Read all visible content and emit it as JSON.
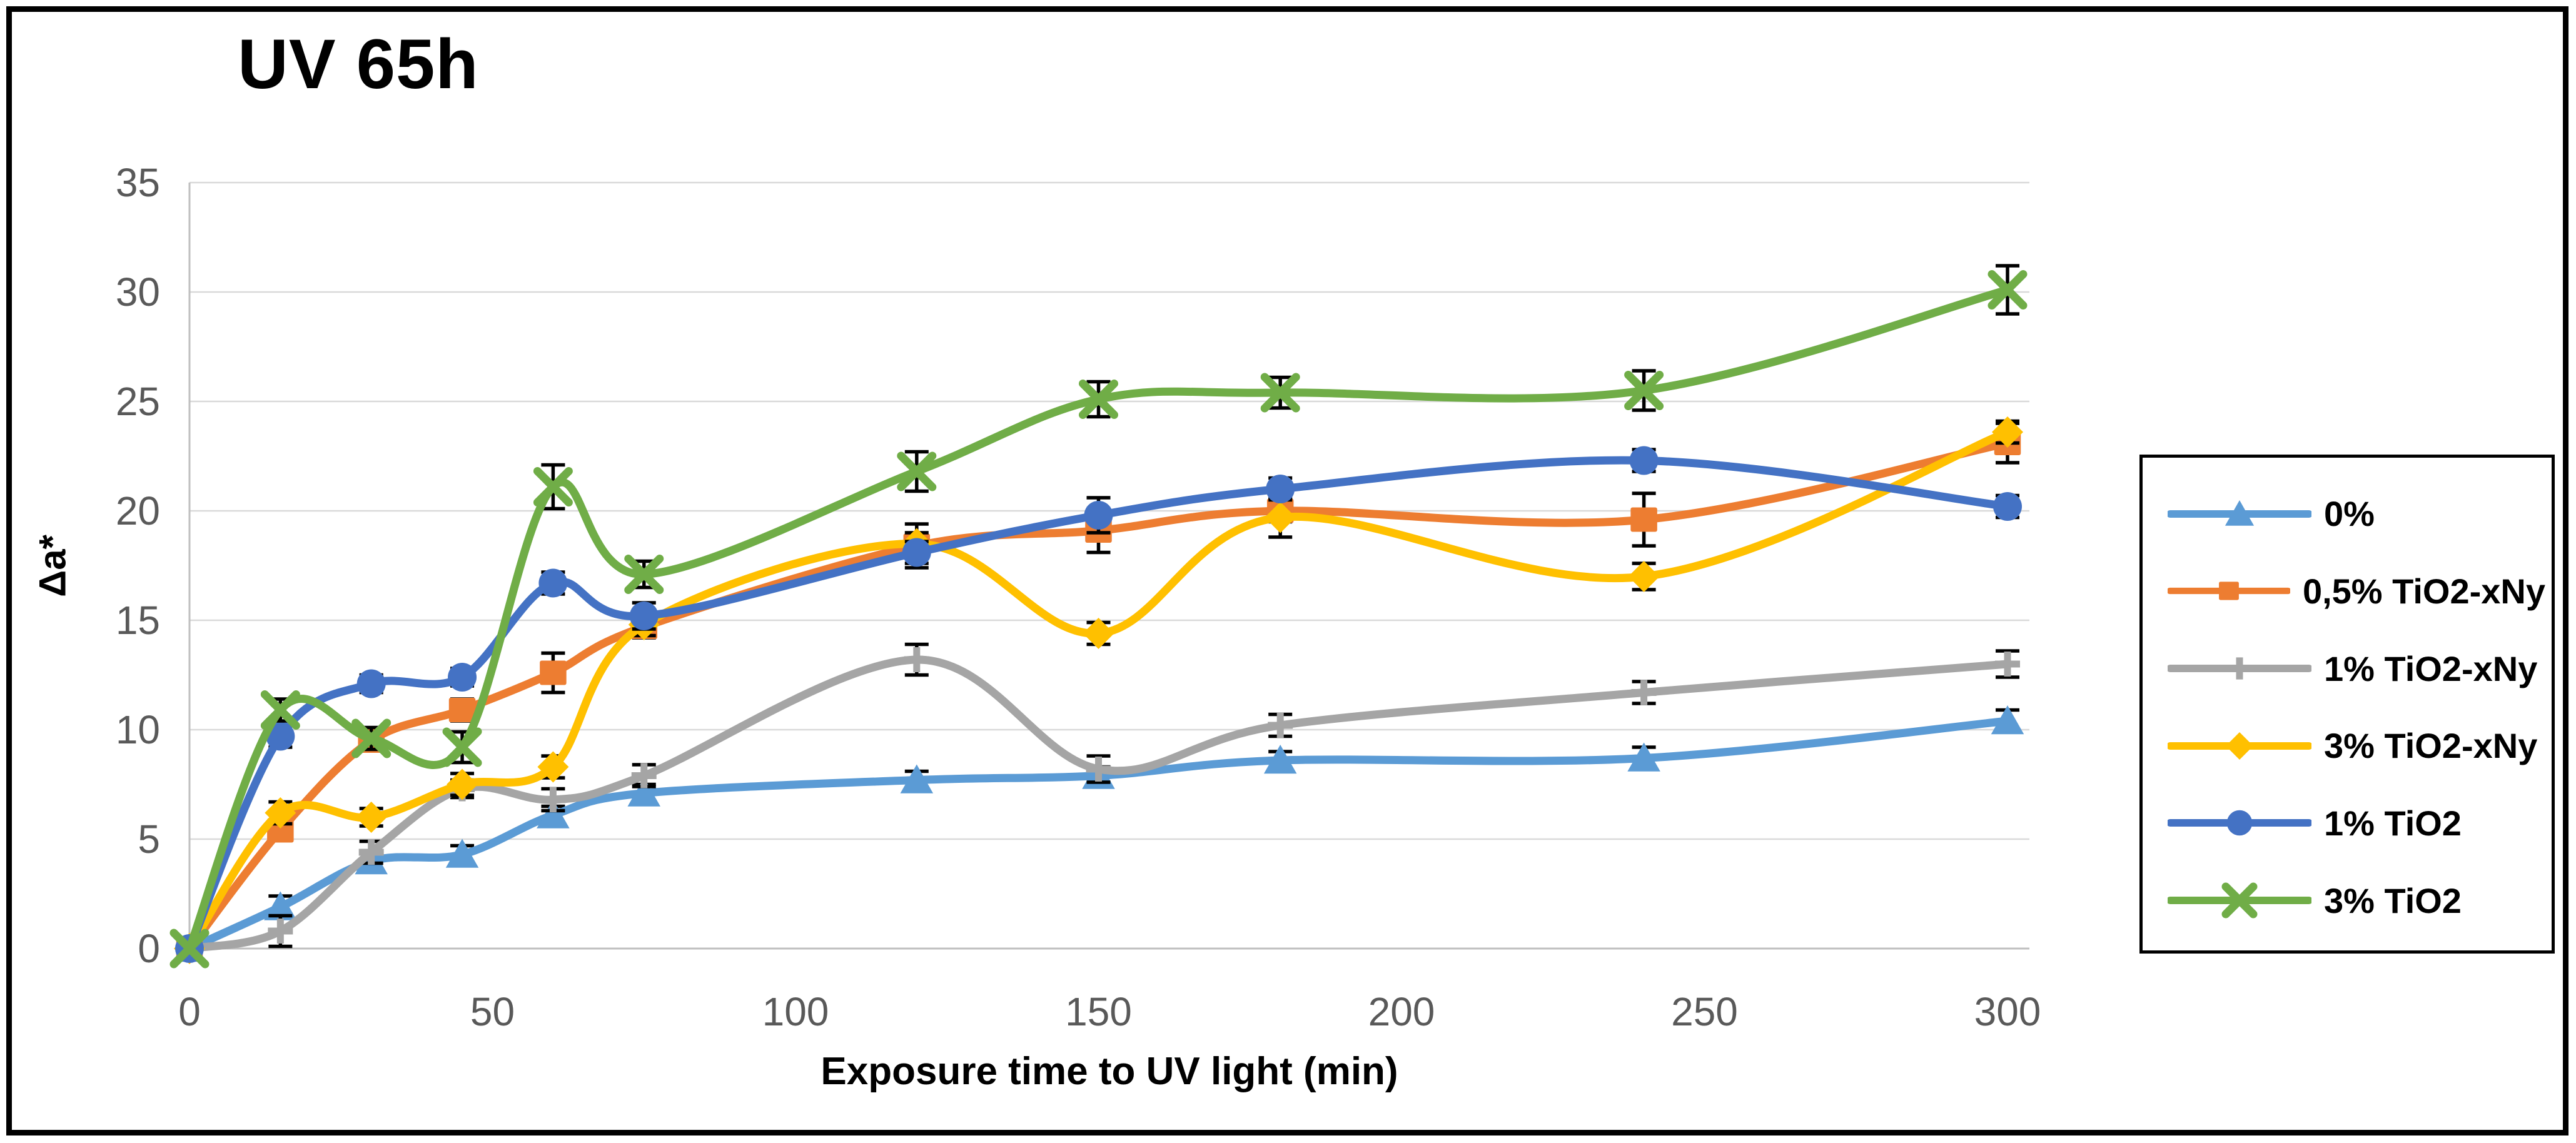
{
  "figure": {
    "title": "UV 65h",
    "border_color": "#000000",
    "background": "#FFFFFF"
  },
  "chart_data": {
    "type": "line",
    "title": "UV 65h",
    "xlabel": "Exposure time to UV light (min)",
    "ylabel": "Δa*",
    "xlim": [
      0,
      304
    ],
    "ylim": [
      0,
      35
    ],
    "x_ticks": [
      0,
      50,
      100,
      150,
      200,
      250,
      300
    ],
    "y_ticks": [
      0,
      5,
      10,
      15,
      20,
      25,
      30,
      35
    ],
    "grid": "horizontal-only",
    "smooth_lines": true,
    "error_bars": true,
    "legend_position": "right",
    "x": [
      0,
      15,
      30,
      45,
      60,
      75,
      120,
      150,
      180,
      240,
      300
    ],
    "series": [
      {
        "name": "0%",
        "color": "#5B9BD5",
        "marker": "triangle",
        "values": [
          0,
          1.9,
          4.0,
          4.3,
          6.1,
          7.1,
          7.7,
          7.9,
          8.6,
          8.7,
          10.4
        ],
        "errors": [
          0,
          0.5,
          0.4,
          0.4,
          0.4,
          0.4,
          0.4,
          0.4,
          0.4,
          0.5,
          0.5
        ]
      },
      {
        "name": "0,5% TiO2-xNy",
        "color": "#ED7D31",
        "marker": "square",
        "values": [
          0,
          5.4,
          9.5,
          10.9,
          12.6,
          14.7,
          18.4,
          19.1,
          20.0,
          19.6,
          23.1
        ],
        "errors": [
          0,
          0.4,
          0.4,
          0.5,
          0.9,
          0.5,
          1.0,
          1.0,
          0.5,
          1.2,
          0.9
        ]
      },
      {
        "name": "1% TiO2-xNy",
        "color": "#A5A5A5",
        "marker": "plus",
        "values": [
          0,
          0.8,
          4.4,
          7.3,
          6.8,
          7.9,
          13.2,
          8.2,
          10.2,
          11.7,
          13.0
        ],
        "errors": [
          0,
          0.7,
          0.5,
          0.4,
          0.5,
          0.5,
          0.7,
          0.6,
          0.5,
          0.5,
          0.6
        ]
      },
      {
        "name": "3% TiO2-xNy",
        "color": "#FFC000",
        "marker": "diamond",
        "values": [
          0,
          6.2,
          6.0,
          7.5,
          8.3,
          14.8,
          18.5,
          14.4,
          19.7,
          17.0,
          23.6
        ],
        "errors": [
          0,
          0.5,
          0.4,
          0.5,
          0.5,
          0.5,
          0.5,
          0.5,
          0.9,
          0.6,
          0.5
        ]
      },
      {
        "name": "1% TiO2",
        "color": "#4472C4",
        "marker": "circle",
        "values": [
          0,
          9.7,
          12.1,
          12.4,
          16.7,
          15.2,
          18.1,
          19.8,
          21.0,
          22.3,
          20.2
        ],
        "errors": [
          0,
          0.5,
          0.4,
          0.4,
          0.5,
          0.6,
          0.5,
          0.8,
          0.5,
          0.5,
          0.5
        ]
      },
      {
        "name": "3% TiO2",
        "color": "#70AD47",
        "marker": "x",
        "values": [
          0,
          10.9,
          9.6,
          9.2,
          21.1,
          17.1,
          21.8,
          25.1,
          25.4,
          25.5,
          30.1
        ],
        "errors": [
          0,
          0.5,
          0.5,
          0.7,
          1.0,
          0.6,
          0.9,
          0.8,
          0.7,
          0.9,
          1.1
        ]
      }
    ]
  },
  "colors": {
    "gridline": "#D9D9D9",
    "axis_line": "#BFBFBF",
    "tick_text": "#595959",
    "error_bar": "#000000",
    "text": "#000000"
  }
}
